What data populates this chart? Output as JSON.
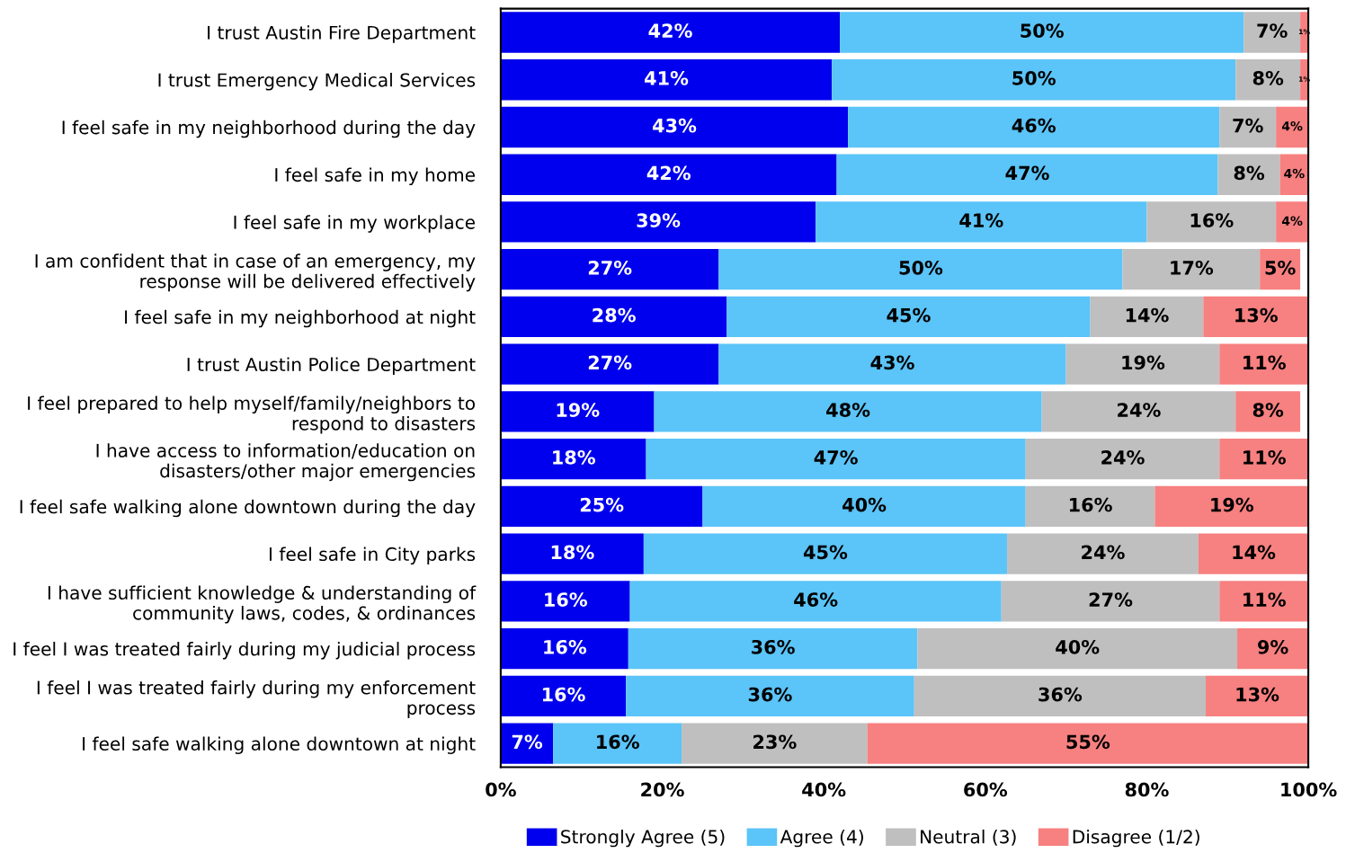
{
  "chart_data": {
    "type": "bar",
    "orientation": "horizontal",
    "stacked": true,
    "grid": false,
    "legend": "bottom",
    "categories": [
      "I trust Austin Fire Department",
      "I trust Emergency Medical Services",
      "I feel safe in my neighborhood during the day",
      "I feel safe in my home",
      "I feel safe in my workplace",
      "I am confident that in case of an emergency, my\nresponse will be delivered effectively",
      "I feel safe in my neighborhood at night",
      "I trust Austin Police Department",
      "I feel prepared to help myself/family/neighbors to\nrespond to disasters",
      "I have access to information/education on\ndisasters/other major emergencies",
      "I feel safe walking alone downtown during the day",
      "I feel safe in City parks",
      "I have sufficient knowledge & understanding of\ncommunity laws, codes, & ordinances",
      "I feel I was treated fairly during my judicial process",
      "I feel I was treated fairly during my enforcement\nprocess",
      "I feel safe walking alone downtown at night"
    ],
    "series": [
      {
        "name": "Strongly Agree (5)",
        "color": "#0000ee",
        "values": [
          42,
          41,
          43,
          41.6,
          39,
          27,
          28,
          27,
          19,
          18,
          25,
          17.7,
          16,
          15.8,
          15.5,
          6.5
        ],
        "value_labels": [
          "42%",
          "41%",
          "43%",
          "42%",
          "39%",
          "27%",
          "28%",
          "27%",
          "19%",
          "18%",
          "25%",
          "18%",
          "16%",
          "16%",
          "16%",
          "7%"
        ]
      },
      {
        "name": "Agree (4)",
        "color": "#5bc4f8",
        "values": [
          50,
          50,
          46,
          47.2,
          41,
          50,
          45,
          43,
          48,
          47,
          40,
          45,
          46,
          35.8,
          35.7,
          15.9
        ],
        "value_labels": [
          "50%",
          "50%",
          "46%",
          "47%",
          "41%",
          "50%",
          "45%",
          "43%",
          "48%",
          "47%",
          "40%",
          "45%",
          "46%",
          "36%",
          "36%",
          "16%"
        ]
      },
      {
        "name": "Neutral (3)",
        "color": "#bfbfbf",
        "values": [
          7,
          8,
          7,
          7.7,
          16,
          17,
          14,
          19,
          24,
          24,
          16,
          23.7,
          27,
          39.6,
          36.1,
          23
        ],
        "value_labels": [
          "7%",
          "8%",
          "7%",
          "8%",
          "16%",
          "17%",
          "14%",
          "19%",
          "24%",
          "24%",
          "16%",
          "24%",
          "27%",
          "40%",
          "36%",
          "23%"
        ]
      },
      {
        "name": "Disagree (1/2)",
        "color": "#f78080",
        "values": [
          1,
          1,
          4,
          3.5,
          4,
          5,
          13,
          11,
          8,
          11,
          19,
          13.6,
          11,
          8.8,
          12.7,
          54.6
        ],
        "value_labels": [
          "1%",
          "1%",
          "4%",
          "4%",
          "4%",
          "5%",
          "13%",
          "11%",
          "8%",
          "11%",
          "19%",
          "14%",
          "11%",
          "9%",
          "13%",
          "55%"
        ]
      }
    ],
    "xlim": [
      0,
      100
    ],
    "xticks": [
      {
        "value": 0,
        "label": "0%"
      },
      {
        "value": 20,
        "label": "20%"
      },
      {
        "value": 40,
        "label": "40%"
      },
      {
        "value": 60,
        "label": "60%"
      },
      {
        "value": 80,
        "label": "80%"
      },
      {
        "value": 100,
        "label": "100%"
      }
    ]
  }
}
